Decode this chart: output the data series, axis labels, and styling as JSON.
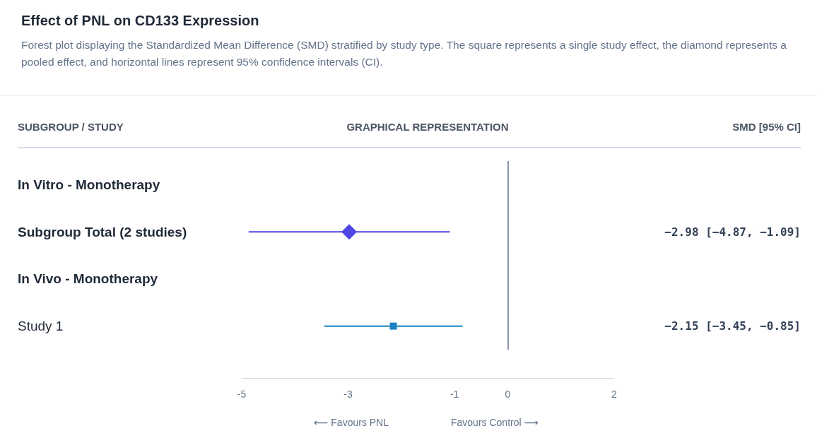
{
  "chart_data": {
    "type": "scatter",
    "orientation": "horizontal",
    "title": "Effect of PNL on CD133 Expression",
    "subtitle": "Forest plot displaying the Standardized Mean Difference (SMD) stratified by study type. The square represents a single study effect, the diamond represents a pooled effect, and horizontal lines represent 95% confidence intervals (CI).",
    "categories": [
      "In Vitro - Monotherapy",
      "Subgroup Total (2 studies)",
      "In Vivo - Monotherapy",
      "Study 1"
    ],
    "series": [
      {
        "color": "#4f46e5",
        "marker": "diamond",
        "values": [
          null,
          -2.98,
          null,
          null
        ],
        "errors": [
          null,
          [
            -4.87,
            -1.09
          ],
          null,
          null
        ]
      },
      {
        "color": "#1a82c4",
        "marker": "square",
        "values": [
          null,
          null,
          null,
          -2.15
        ],
        "errors": [
          null,
          null,
          null,
          [
            -3.45,
            -0.85
          ]
        ]
      }
    ],
    "xlim": [
      -5,
      2
    ],
    "xticks": [
      -5,
      -3,
      -1,
      0,
      2
    ],
    "ref_lines": [
      {
        "axis": "x",
        "value": 0,
        "color": "#8a94a6"
      }
    ],
    "annotations": [
      "SUBGROUP / STUDY",
      "GRAPHICAL REPRESENTATION",
      "SMD [95% CI]",
      "⟵ Favours PNL",
      "Favours Control ⟶",
      "−2.98 [−4.87, −1.09]",
      "−2.15 [−3.45, −0.85]"
    ],
    "grid": false
  }
}
